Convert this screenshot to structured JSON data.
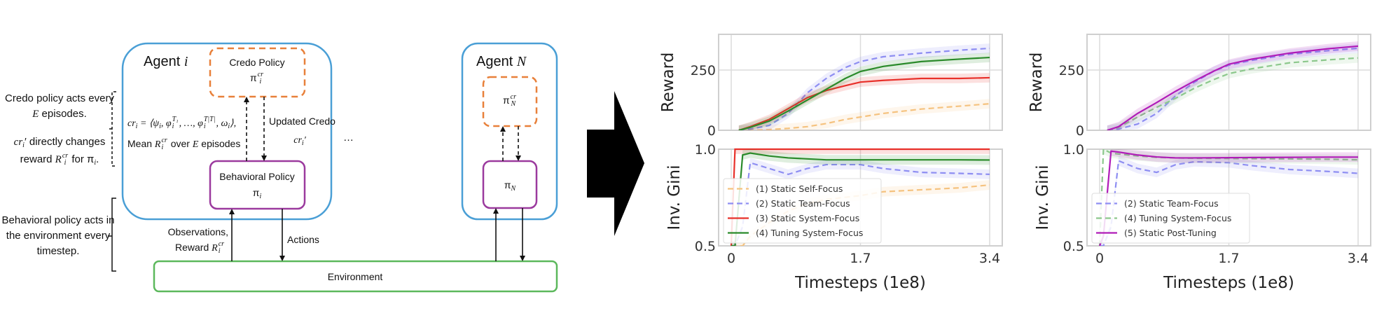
{
  "diagram": {
    "notes": {
      "credo_line1": "Credo policy acts every",
      "credo_line2_var": "E",
      "credo_line2": " episodes.",
      "cr_var": "cr",
      "cr_sub": "i",
      "cr_rest": "′ directly changes",
      "reward_word": "reward ",
      "R": "R",
      "R_sub": "i",
      "R_sup": "cr",
      "for_pi": " for π",
      "pi_sub": "i",
      "period": ".",
      "behavior_lines": [
        "Behavioral policy acts in",
        "the environment every",
        "timestep."
      ]
    },
    "agent_i": {
      "title": "Agent ",
      "var": "i"
    },
    "agent_n": {
      "title": "Agent ",
      "var": "N"
    },
    "credo_policy": {
      "label": "Credo Policy",
      "symbol": "π",
      "sub": "i",
      "sup": "cr"
    },
    "credo_policy_n": {
      "symbol": "π",
      "sub": "N",
      "sup": "cr"
    },
    "behavioral_policy": {
      "label": "Behavioral Policy",
      "symbol": "π",
      "sub": "i"
    },
    "behavioral_policy_n": {
      "symbol": "π",
      "sub": "N"
    },
    "formula": {
      "lhs": "cr",
      "lhs_sub": "i",
      "body": " = ⟨ψ",
      "psi_sub": "i",
      "phi1": ", φ",
      "phi1_sub": "i",
      "phi1_sup": "T₁",
      "dots": ", …, φ",
      "phi2_sub": "i",
      "phi2_sup": "T|T|",
      "omega": ", ω",
      "omega_sub": "i",
      "close": "⟩,",
      "mean_word": "Mean ",
      "R": "R",
      "R_sub": "i",
      "R_sup": "cr",
      "over": " over ",
      "E": "E",
      "episodes": " episodes"
    },
    "updated_credo": {
      "label": "Updated Credo",
      "var": "cr",
      "sub": "i",
      "prime": "′"
    },
    "ellipsis": "…",
    "observations": {
      "line1": "Observations,",
      "line2": "Reward ",
      "R": "R",
      "R_sub": "i",
      "R_sup": "cr"
    },
    "actions": "Actions",
    "environment": "Environment",
    "colors": {
      "agent": "#4a9fd6",
      "credo": "#e8803a",
      "behavioral": "#9b3a9e",
      "environment": "#5cb85c"
    }
  },
  "chart_data": [
    {
      "type": "line",
      "xlabel": "Timesteps (1e8)",
      "xticks": [
        "0",
        "1.7",
        "3.4"
      ],
      "xtick_values": [
        0,
        1.7,
        3.4
      ],
      "grid": true,
      "legend": {
        "location": "lower-left",
        "panel": "gini"
      },
      "panels": {
        "reward": {
          "ylabel": "Reward",
          "yticks": [
            "0",
            "250"
          ],
          "ytick_values": [
            0,
            250
          ],
          "ylim": [
            0,
            398
          ],
          "x": [
            0.1,
            0.25,
            0.5,
            0.75,
            1.0,
            1.25,
            1.5,
            1.7,
            2.0,
            2.5,
            3.0,
            3.4
          ],
          "series": [
            {
              "name": "(1) Static Self-Focus",
              "color": "#f5c27e",
              "dash": true,
              "values": [
                0,
                0,
                3,
                8,
                15,
                28,
                45,
                55,
                70,
                88,
                100,
                110
              ]
            },
            {
              "name": "(2) Static Team-Focus",
              "color": "#8e8ef2",
              "dash": true,
              "values": [
                0,
                5,
                20,
                70,
                155,
                215,
                260,
                285,
                305,
                320,
                332,
                340
              ]
            },
            {
              "name": "(3) Static System-Focus",
              "color": "#e8302a",
              "dash": false,
              "values": [
                0,
                15,
                45,
                90,
                135,
                165,
                185,
                200,
                207,
                215,
                215,
                218
              ]
            },
            {
              "name": "(4) Tuning System-Focus",
              "color": "#2a8a2a",
              "dash": false,
              "values": [
                0,
                12,
                38,
                80,
                125,
                170,
                215,
                244,
                265,
                285,
                295,
                302
              ]
            }
          ]
        },
        "gini": {
          "ylabel": "Inv. Gini",
          "yticks": [
            "0.5",
            "1.0"
          ],
          "ytick_values": [
            0.5,
            1.0
          ],
          "ylim": [
            0.5,
            1.0
          ],
          "x": [
            0.0,
            0.05,
            0.15,
            0.25,
            0.5,
            0.75,
            1.0,
            1.25,
            1.7,
            2.0,
            2.5,
            3.0,
            3.4
          ],
          "series": [
            {
              "name": "(1) Static Self-Focus",
              "color": "#f5c27e",
              "dash": true,
              "values": [
                0.5,
                0.5,
                0.5,
                0.55,
                0.62,
                0.68,
                0.72,
                0.74,
                0.76,
                0.78,
                0.79,
                0.8,
                0.815
              ]
            },
            {
              "name": "(2) Static Team-Focus",
              "color": "#8e8ef2",
              "dash": true,
              "values": [
                0.5,
                0.5,
                0.6,
                0.93,
                0.9,
                0.87,
                0.9,
                0.92,
                0.92,
                0.9,
                0.88,
                0.875,
                0.87
              ]
            },
            {
              "name": "(3) Static System-Focus",
              "color": "#e8302a",
              "dash": false,
              "values": [
                0.5,
                1.0,
                1.0,
                1.0,
                1.0,
                1.0,
                1.0,
                1.0,
                1.0,
                1.0,
                1.0,
                1.0,
                1.0
              ]
            },
            {
              "name": "(4) Tuning System-Focus",
              "color": "#2a8a2a",
              "dash": false,
              "values": [
                0.5,
                0.5,
                0.97,
                0.98,
                0.965,
                0.955,
                0.95,
                0.945,
                0.945,
                0.945,
                0.945,
                0.945,
                0.944
              ]
            }
          ]
        }
      }
    },
    {
      "type": "line",
      "xlabel": "Timesteps (1e8)",
      "xticks": [
        "0",
        "1.7",
        "3.4"
      ],
      "xtick_values": [
        0,
        1.7,
        3.4
      ],
      "grid": true,
      "legend": {
        "location": "lower-left",
        "panel": "gini"
      },
      "panels": {
        "reward": {
          "ylabel": "Reward",
          "yticks": [
            "0",
            "250"
          ],
          "ytick_values": [
            0,
            250
          ],
          "ylim": [
            0,
            398
          ],
          "x": [
            0.1,
            0.25,
            0.5,
            0.75,
            1.0,
            1.25,
            1.5,
            1.7,
            2.0,
            2.5,
            3.0,
            3.4
          ],
          "series": [
            {
              "name": "(2) Static Team-Focus",
              "color": "#8e8ef2",
              "dash": true,
              "values": [
                0,
                5,
                26,
                70,
                143,
                200,
                245,
                270,
                290,
                315,
                330,
                340
              ]
            },
            {
              "name": "(4) Tuning System-Focus",
              "color": "#8cc88c",
              "dash": true,
              "values": [
                0,
                12,
                55,
                95,
                133,
                175,
                210,
                235,
                255,
                280,
                292,
                300
              ]
            },
            {
              "name": "(5) Static Post-Tuning",
              "color": "#b01cb8",
              "dash": false,
              "values": [
                0,
                15,
                70,
                115,
                162,
                205,
                245,
                274,
                295,
                320,
                338,
                349
              ]
            }
          ]
        },
        "gini": {
          "ylabel": "Inv. Gini",
          "yticks": [
            "0.5",
            "1.0"
          ],
          "ytick_values": [
            0.5,
            1.0
          ],
          "ylim": [
            0.5,
            1.0
          ],
          "x": [
            0.0,
            0.05,
            0.15,
            0.25,
            0.5,
            0.75,
            1.0,
            1.25,
            1.7,
            2.0,
            2.5,
            3.0,
            3.4
          ],
          "series": [
            {
              "name": "(2) Static Team-Focus",
              "color": "#8e8ef2",
              "dash": true,
              "values": [
                0.5,
                0.5,
                0.6,
                0.94,
                0.9,
                0.88,
                0.92,
                0.935,
                0.93,
                0.915,
                0.895,
                0.885,
                0.875
              ]
            },
            {
              "name": "(4) Tuning System-Focus",
              "color": "#8cc88c",
              "dash": true,
              "values": [
                0.5,
                1.0,
                0.98,
                0.975,
                0.965,
                0.958,
                0.955,
                0.953,
                0.952,
                0.951,
                0.95,
                0.948,
                0.945
              ]
            },
            {
              "name": "(5) Static Post-Tuning",
              "color": "#b01cb8",
              "dash": false,
              "values": [
                0.5,
                0.55,
                0.99,
                0.985,
                0.97,
                0.96,
                0.955,
                0.955,
                0.956,
                0.957,
                0.958,
                0.959,
                0.959
              ]
            }
          ]
        }
      }
    }
  ]
}
